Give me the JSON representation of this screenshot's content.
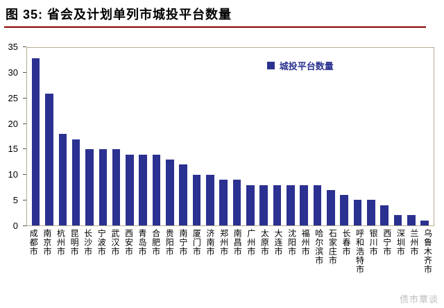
{
  "figure": {
    "title": "图 35:  省会及计划单列市城投平台数量",
    "watermark": "债市覃谈"
  },
  "colors": {
    "bar": "#2b3190",
    "legend_text": "#2b3190",
    "title_rule": "#8b0000",
    "plot_border": "#b5ac90"
  },
  "chart_data": {
    "type": "bar",
    "title": "省会及计划单列市城投平台数量",
    "legend": [
      "城投平台数量"
    ],
    "legend_position": "top-center-inside",
    "xlabel": "",
    "ylabel": "",
    "ylim": [
      0,
      35
    ],
    "yticks": [
      0,
      5,
      10,
      15,
      20,
      25,
      30,
      35
    ],
    "grid": false,
    "categories": [
      "成都市",
      "南京市",
      "杭州市",
      "昆明市",
      "长沙市",
      "宁波市",
      "武汉市",
      "西安市",
      "青岛市",
      "合肥市",
      "贵阳市",
      "南宁市",
      "厦门市",
      "济南市",
      "郑州市",
      "南昌市",
      "广州市",
      "太原市",
      "大连市",
      "沈阳市",
      "福州市",
      "哈尔滨市",
      "石家庄市",
      "长春市",
      "呼和浩特市",
      "银川市",
      "西宁市",
      "深圳市",
      "兰州市",
      "乌鲁木齐市"
    ],
    "values": [
      33,
      26,
      18,
      17,
      15,
      15,
      15,
      14,
      14,
      14,
      13,
      12,
      10,
      10,
      9,
      9,
      8,
      8,
      8,
      8,
      8,
      8,
      7,
      6,
      5,
      5,
      4,
      2,
      2,
      1
    ]
  }
}
